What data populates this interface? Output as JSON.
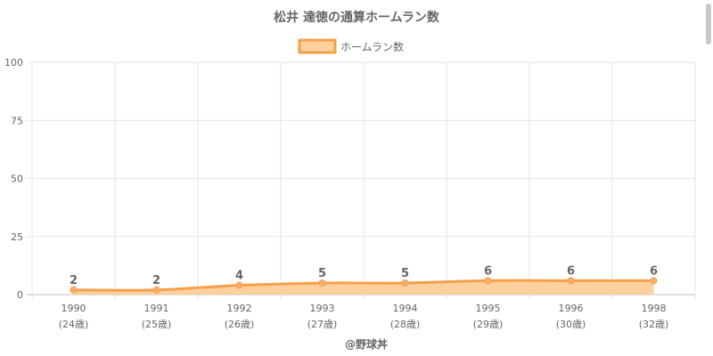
{
  "chart_data": {
    "type": "area",
    "title": "松井 達徳の通算ホームラン数",
    "categories": [
      "1990",
      "1991",
      "1992",
      "1993",
      "1994",
      "1995",
      "1996",
      "1998"
    ],
    "sublabels": [
      "(24歳)",
      "(25歳)",
      "(26歳)",
      "(27歳)",
      "(28歳)",
      "(29歳)",
      "(30歳)",
      "(32歳)"
    ],
    "series": [
      {
        "name": "ホームラン数",
        "values": [
          2,
          2,
          4,
          5,
          5,
          6,
          6,
          6
        ]
      }
    ],
    "data_labels": [
      "2",
      "2",
      "4",
      "5",
      "5",
      "6",
      "6",
      "6"
    ],
    "yticks": [
      "0",
      "25",
      "50",
      "75",
      "100"
    ],
    "ylim": [
      0,
      100
    ],
    "xlabel": "",
    "ylabel": "",
    "grid": true,
    "legend_position": "top-center",
    "colors": {
      "line": "#f5a04a",
      "fill": "#fdd09e",
      "point": "#f7ae6a",
      "grid": "#e6e6e6",
      "text": "#666666"
    }
  },
  "credit": "@野球丼"
}
